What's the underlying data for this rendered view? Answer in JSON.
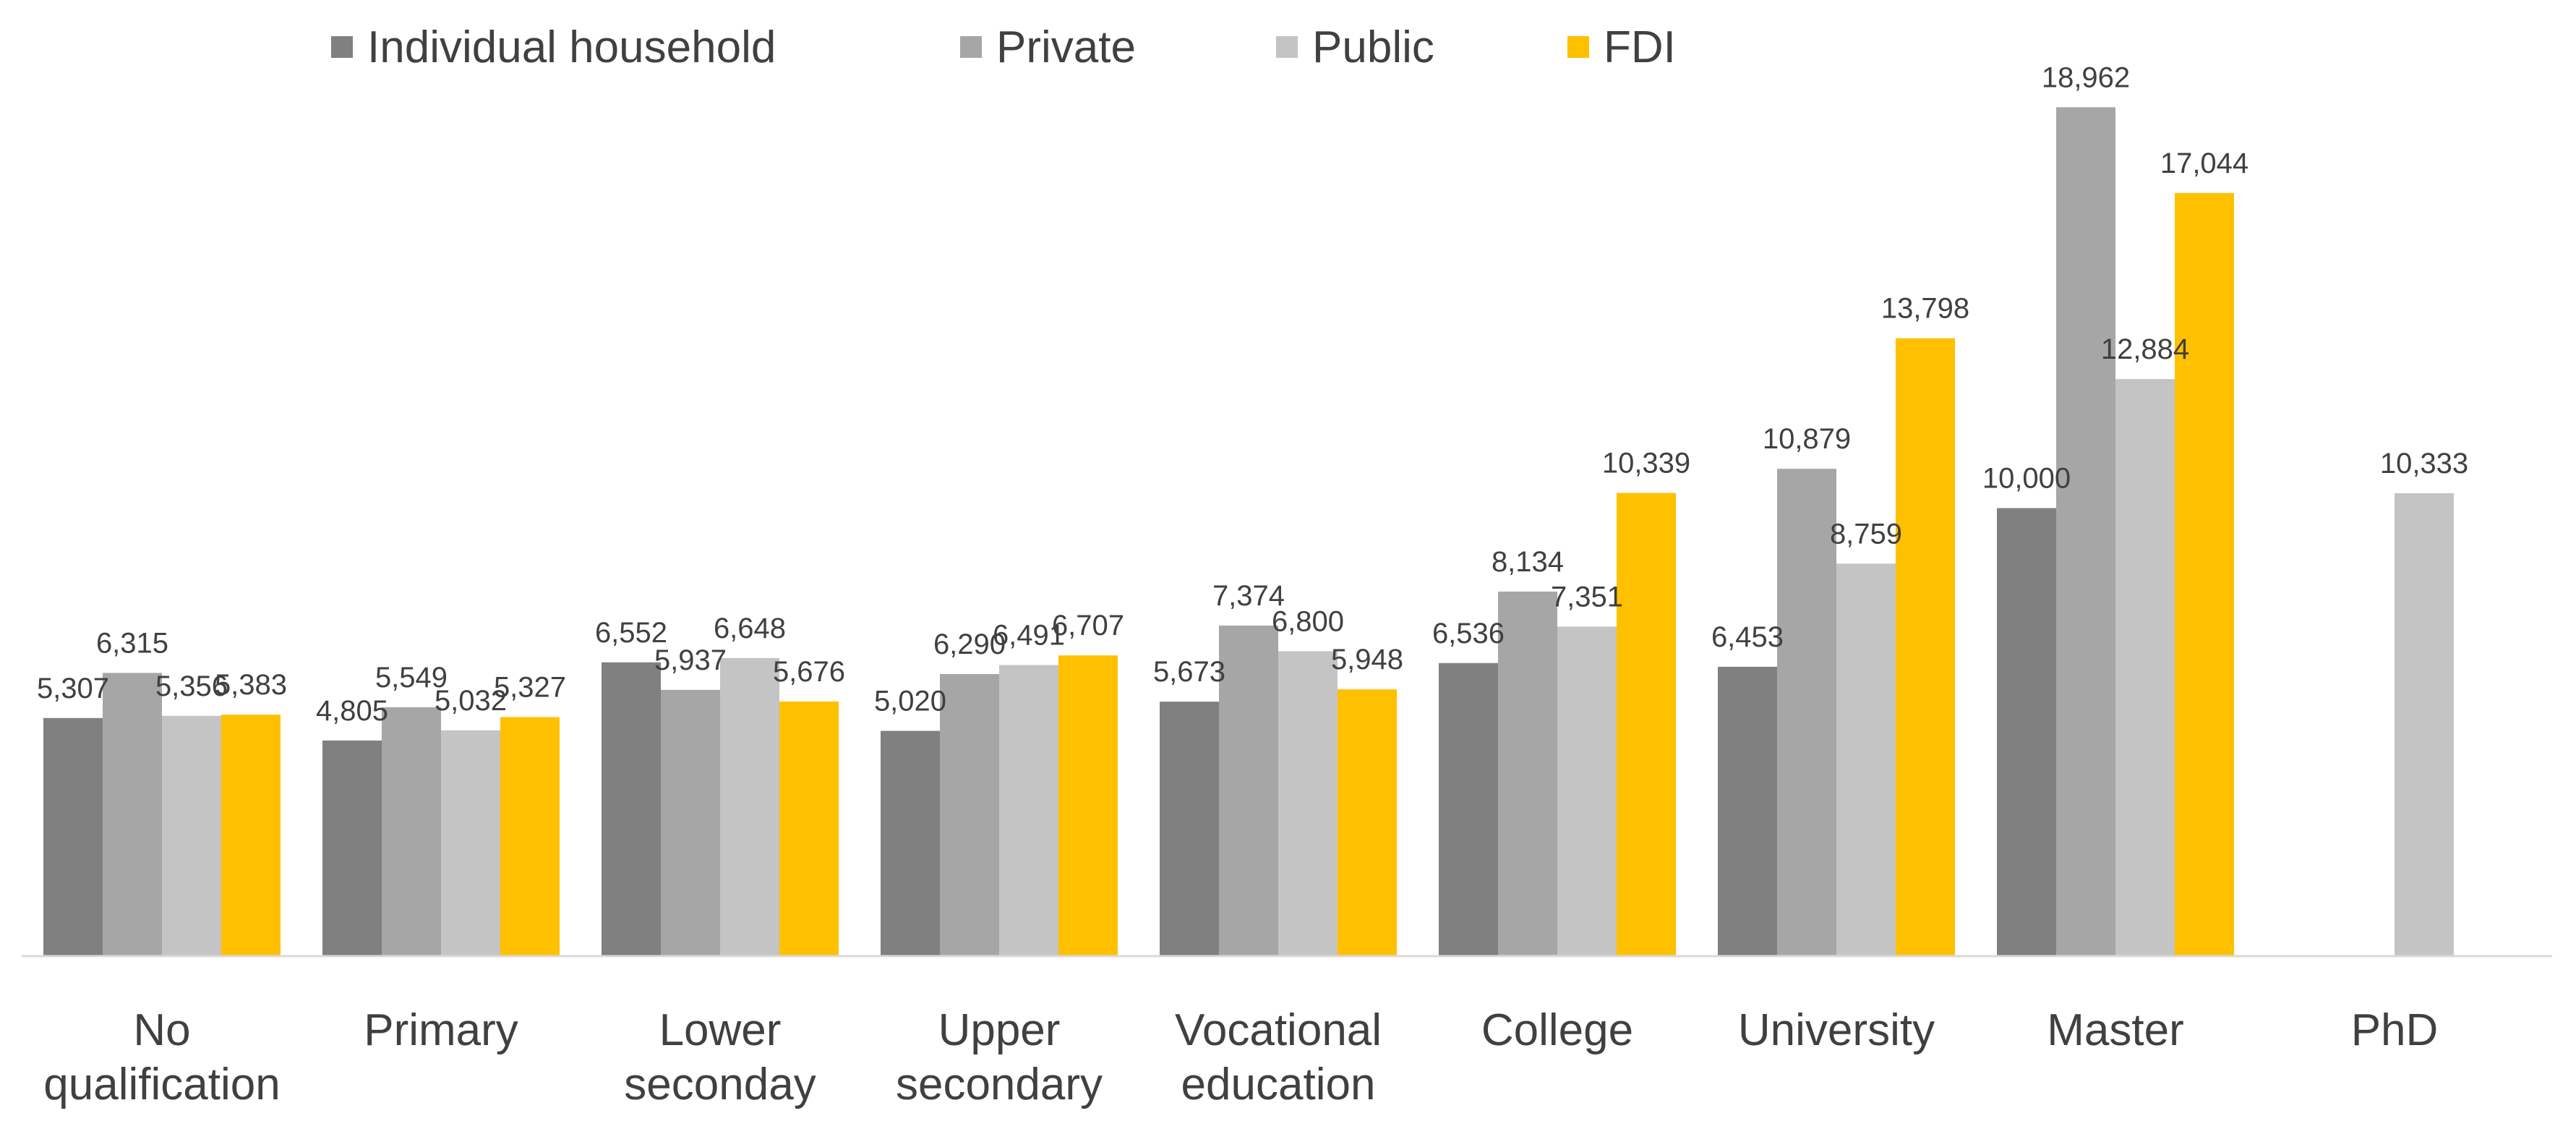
{
  "chart_data": {
    "type": "bar",
    "title": "",
    "xlabel": "",
    "ylabel": "",
    "ylim": [
      0,
      20000
    ],
    "grid": false,
    "legend_position": "top-center",
    "categories": [
      [
        "No",
        "qualification"
      ],
      [
        "Primary"
      ],
      [
        "Lower",
        "seconday"
      ],
      [
        "Upper",
        "secondary"
      ],
      [
        "Vocational",
        "education"
      ],
      [
        "College"
      ],
      [
        "University"
      ],
      [
        "Master"
      ],
      [
        "PhD"
      ]
    ],
    "series": [
      {
        "name": "Individual household",
        "color": "#808080",
        "values": [
          5307,
          4805,
          6552,
          5020,
          5673,
          6536,
          6453,
          10000,
          null
        ]
      },
      {
        "name": "Private",
        "color": "#a6a6a6",
        "values": [
          6315,
          5549,
          5937,
          6290,
          7374,
          8134,
          10879,
          18962,
          null
        ]
      },
      {
        "name": "Public",
        "color": "#c4c4c4",
        "values": [
          5356,
          5032,
          6648,
          6491,
          6800,
          7351,
          8759,
          12884,
          10333
        ]
      },
      {
        "name": "FDI",
        "color": "#ffc000",
        "values": [
          5383,
          5327,
          5676,
          6707,
          5948,
          10339,
          13798,
          17044,
          null
        ]
      }
    ]
  },
  "axis_color": "#d9d9d9"
}
